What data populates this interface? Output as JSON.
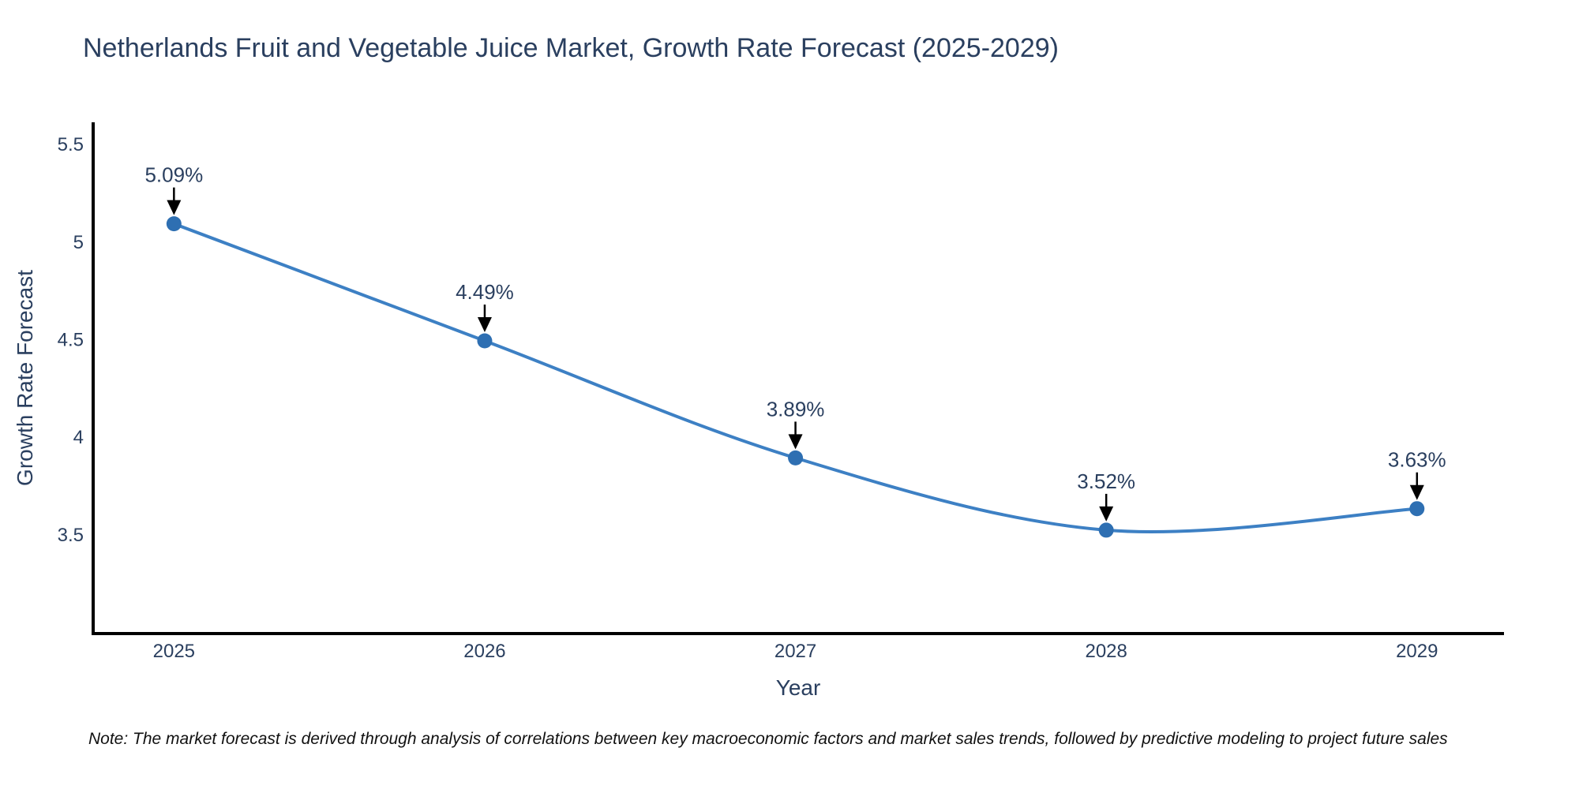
{
  "title": {
    "text": "Netherlands Fruit and Vegetable Juice Market, Growth Rate Forecast (2025-2029)",
    "color": "#2a3f5f"
  },
  "note": {
    "text": "Note: The market forecast is derived through analysis of correlations between key macroeconomic factors and market sales trends, followed by predictive modeling to project future sales"
  },
  "chart_data": {
    "type": "line",
    "title": "Netherlands Fruit and Vegetable Juice Market, Growth Rate Forecast (2025-2029)",
    "x": [
      2025,
      2026,
      2027,
      2028,
      2029
    ],
    "series": [
      {
        "name": "Growth Rate Forecast",
        "values": [
          5.09,
          4.49,
          3.89,
          3.52,
          3.63
        ]
      }
    ],
    "point_labels": [
      "5.09%",
      "4.49%",
      "3.89%",
      "3.52%",
      "3.63%"
    ],
    "xlabel": "Year",
    "ylabel": "Growth Rate Forecast",
    "xticks": [
      "2025",
      "2026",
      "2027",
      "2028",
      "2029"
    ],
    "yticks": [
      3.5,
      4,
      4.5,
      5,
      5.5
    ],
    "ytick_labels": [
      "3.5",
      "4",
      "4.5",
      "5",
      "5.5"
    ],
    "xlim": [
      2024.74,
      2029.28
    ],
    "ylim": [
      2.99,
      5.61
    ],
    "grid": false,
    "legend": false,
    "line_shape": "spline",
    "colors": {
      "line": "#3d80c4",
      "marker": "#2e6fb2",
      "arrow": "#000000",
      "axis": "#000000",
      "text": "#2a3f5f"
    }
  }
}
